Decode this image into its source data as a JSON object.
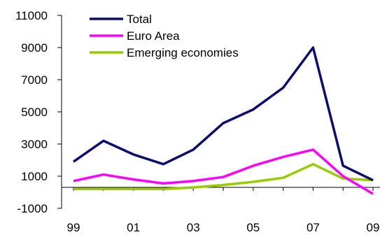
{
  "chart_data": {
    "type": "line",
    "title": "",
    "xlabel": "",
    "ylabel": "",
    "x": [
      1999,
      2000,
      2001,
      2002,
      2003,
      2004,
      2005,
      2006,
      2007,
      2008,
      2009
    ],
    "x_tick_labels": [
      "99",
      "01",
      "03",
      "05",
      "07",
      "09"
    ],
    "x_tick_values": [
      1999,
      2001,
      2003,
      2005,
      2007,
      2009
    ],
    "y_ticks": [
      11000,
      9000,
      7000,
      5000,
      3000,
      1000,
      -1000
    ],
    "ylim": [
      -1000,
      11000
    ],
    "grid": false,
    "legend_position": "top-left",
    "series": [
      {
        "name": "Total",
        "color": "#0c0c6e",
        "values": [
          1900,
          3200,
          2350,
          1750,
          2650,
          4300,
          5150,
          6500,
          9000,
          1650,
          750
        ]
      },
      {
        "name": "Euro Area",
        "color": "#ff00ff",
        "values": [
          700,
          1100,
          800,
          550,
          700,
          950,
          1650,
          2200,
          2650,
          1000,
          -100
        ]
      },
      {
        "name": "Emerging economies",
        "color": "#99cc00",
        "values": [
          200,
          200,
          200,
          200,
          300,
          450,
          650,
          900,
          1750,
          850,
          750
        ]
      }
    ]
  }
}
